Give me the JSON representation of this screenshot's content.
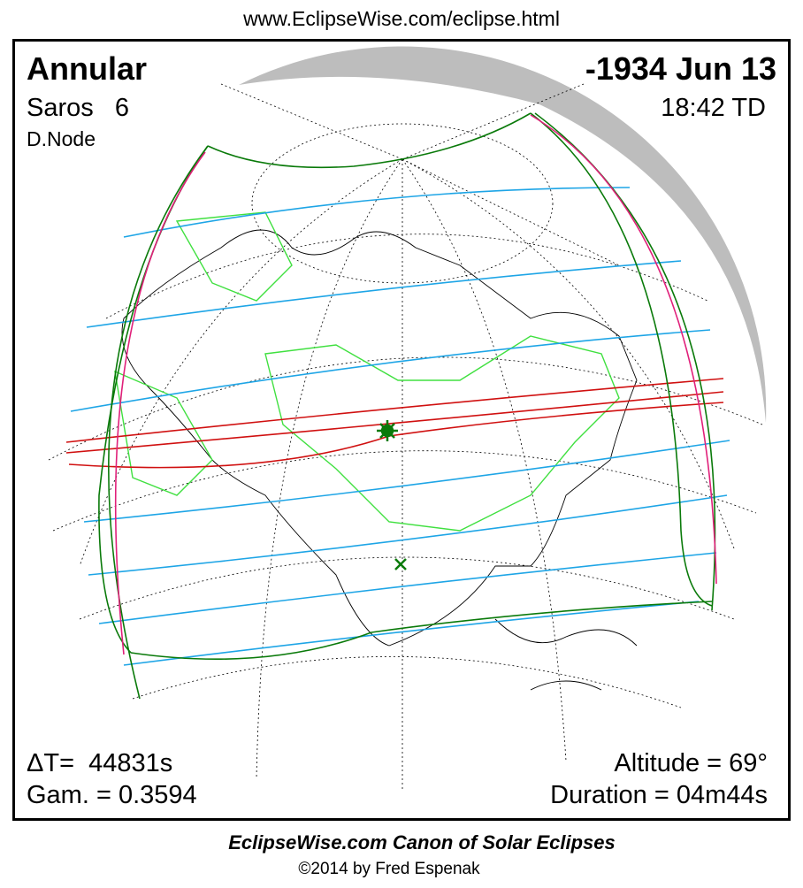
{
  "header": {
    "url": "www.EclipseWise.com/eclipse.html"
  },
  "panel": {
    "eclipse_type": "Annular",
    "date": "-1934 Jun 13",
    "saros": "Saros   6",
    "time": "18:42 TD",
    "node": "D.Node",
    "delta_t": "ΔT=  44831s",
    "gamma": "Gam. = 0.3594",
    "altitude": "Altitude = 69°",
    "duration": "Duration = 04m44s"
  },
  "footer": {
    "title": "EclipseWise.com Canon of Solar Eclipses",
    "copyright": "©2014 by Fred Espenak"
  }
}
